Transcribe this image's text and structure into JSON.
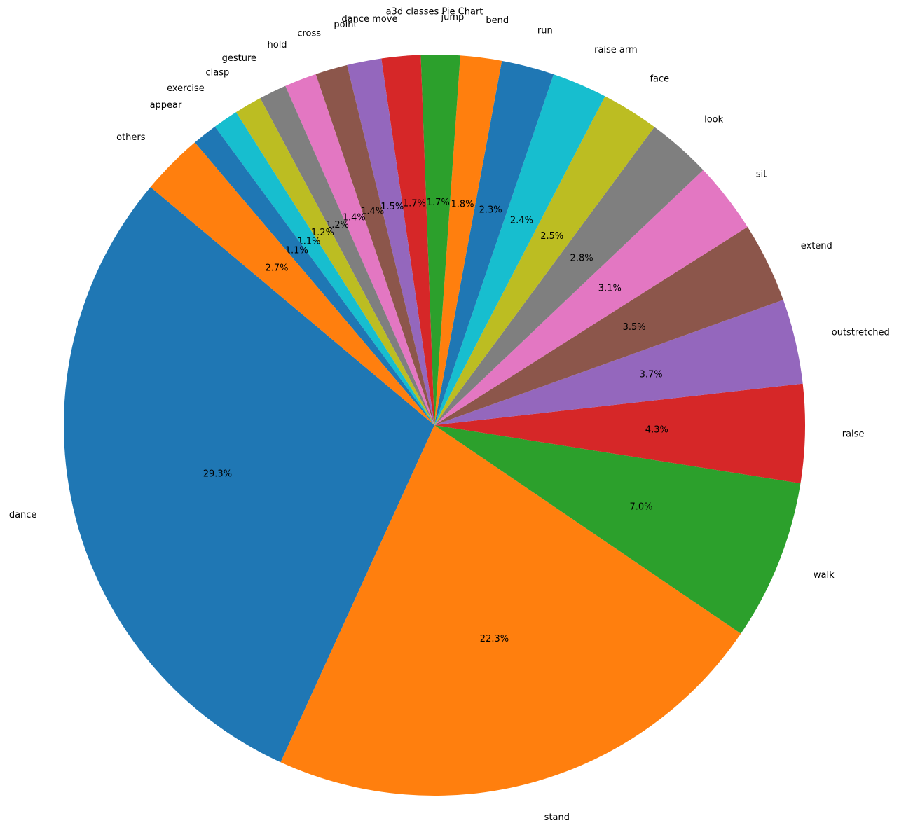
{
  "chart_data": {
    "type": "pie",
    "title": "a3d classes Pie Chart",
    "categories": [
      "dance",
      "stand",
      "walk",
      "raise",
      "outstretched",
      "extend",
      "sit",
      "look",
      "face",
      "raise arm",
      "run",
      "bend",
      "jump",
      "dance move",
      "point",
      "cross",
      "hold",
      "gesture",
      "clasp",
      "exercise",
      "appear",
      "others"
    ],
    "values": [
      29.3,
      22.3,
      7.0,
      4.3,
      3.7,
      3.5,
      3.1,
      2.8,
      2.5,
      2.4,
      2.3,
      1.8,
      1.7,
      1.7,
      1.5,
      1.4,
      1.4,
      1.2,
      1.2,
      1.1,
      1.1,
      2.7
    ],
    "value_labels": [
      "29.3%",
      "22.3%",
      "7.0%",
      "4.3%",
      "3.7%",
      "3.5%",
      "3.1%",
      "2.8%",
      "2.5%",
      "2.4%",
      "2.3%",
      "1.8%",
      "1.7%",
      "1.7%",
      "1.5%",
      "1.4%",
      "1.4%",
      "1.2%",
      "1.2%",
      "1.1%",
      "1.1%",
      "2.7%"
    ],
    "colors": [
      "#1f77b4",
      "#ff7f0e",
      "#2ca02c",
      "#d62728",
      "#9467bd",
      "#8c564b",
      "#e377c2",
      "#7f7f7f",
      "#bcbd22",
      "#17becf",
      "#1f77b4",
      "#ff7f0e",
      "#2ca02c",
      "#d62728",
      "#9467bd",
      "#8c564b",
      "#e377c2",
      "#7f7f7f",
      "#bcbd22",
      "#17becf",
      "#1f77b4",
      "#ff7f0e"
    ]
  }
}
